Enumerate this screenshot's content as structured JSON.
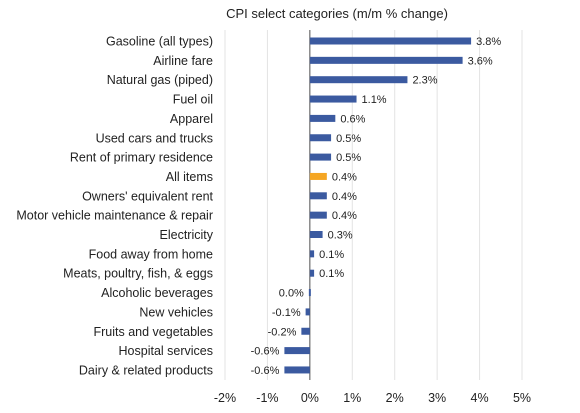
{
  "chart_data": {
    "type": "bar",
    "orientation": "horizontal",
    "title": "CPI select categories (m/m % change)",
    "xlabel": "",
    "ylabel": "",
    "xlim": [
      -2,
      5
    ],
    "xticks": [
      -2,
      -1,
      0,
      1,
      2,
      3,
      4,
      5
    ],
    "xtick_labels": [
      "-2%",
      "-1%",
      "0%",
      "1%",
      "2%",
      "3%",
      "4%",
      "5%"
    ],
    "grid": true,
    "colors": {
      "default": "#3b5aa0",
      "highlight": "#f5a623"
    },
    "categories": [
      "Gasoline (all types)",
      "Airline fare",
      "Natural gas (piped)",
      "Fuel oil",
      "Apparel",
      "Used cars and trucks",
      "Rent of primary residence",
      "All items",
      "Owners' equivalent rent",
      "Motor vehicle maintenance & repair",
      "Electricity",
      "Food away from home",
      "Meats, poultry, fish, & eggs",
      "Alcoholic beverages",
      "New vehicles",
      "Fruits and vegetables",
      "Hospital services",
      "Dairy & related products"
    ],
    "values": [
      3.8,
      3.6,
      2.3,
      1.1,
      0.6,
      0.5,
      0.5,
      0.4,
      0.4,
      0.4,
      0.3,
      0.1,
      0.1,
      0.0,
      -0.1,
      -0.2,
      -0.6,
      -0.6
    ],
    "value_labels": [
      "3.8%",
      "3.6%",
      "2.3%",
      "1.1%",
      "0.6%",
      "0.5%",
      "0.5%",
      "0.4%",
      "0.4%",
      "0.4%",
      "0.3%",
      "0.1%",
      "0.1%",
      "0.0%",
      "-0.1%",
      "-0.2%",
      "-0.6%",
      "-0.6%"
    ],
    "highlight_category": "All items"
  }
}
